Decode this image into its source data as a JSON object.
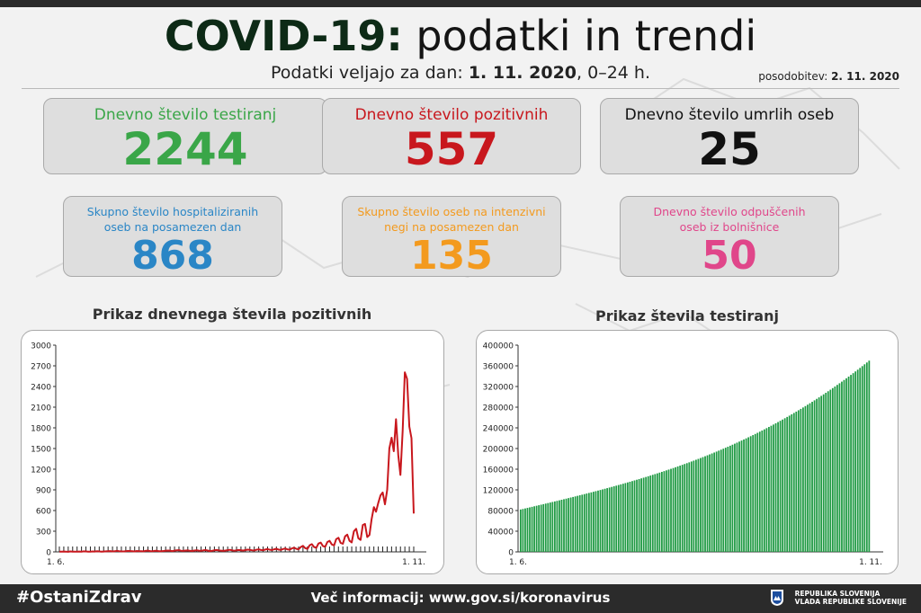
{
  "header": {
    "title_bold": "COVID-19:",
    "title_rest": "podatki in trendi",
    "date_prefix": "Podatki veljajo za dan:",
    "date_value": "1. 11. 2020",
    "date_suffix": ", 0–24 h.",
    "updated_label": "posodobitev:",
    "updated_value": "2. 11. 2020"
  },
  "stats_top": [
    {
      "label": "Dnevno število testiranj",
      "value": "2244",
      "color": "#3aa648"
    },
    {
      "label": "Dnevno število pozitivnih",
      "value": "557",
      "color": "#c8171d"
    },
    {
      "label": "Dnevno število umrlih oseb",
      "value": "25",
      "color": "#111111"
    }
  ],
  "stats_bottom": [
    {
      "label_line1": "Skupno število hospitaliziranih",
      "label_line2": "oseb na posamezen dan",
      "value": "868",
      "color": "#2a86c6"
    },
    {
      "label_line1": "Skupno število oseb na intenzivni",
      "label_line2": "negi na posamezen dan",
      "value": "135",
      "color": "#f39a1e"
    },
    {
      "label_line1": "Dnevno število odpuščenih",
      "label_line2": "oseb iz bolnišnice",
      "value": "50",
      "color": "#e0468a"
    }
  ],
  "charts": {
    "positive": {
      "title": "Prikaz dnevnega števila pozitivnih"
    },
    "tests": {
      "title": "Prikaz števila testiranj"
    }
  },
  "chart_data": [
    {
      "type": "line",
      "title": "Prikaz dnevnega števila pozitivnih",
      "xlabel": "",
      "ylabel": "",
      "x_tick_labels": [
        "1. 6.",
        "1. 11."
      ],
      "ylim": [
        0,
        3000
      ],
      "yticks": [
        0,
        300,
        600,
        900,
        1200,
        1500,
        1800,
        2100,
        2400,
        2700,
        3000
      ],
      "line_color": "#c8171d",
      "series": [
        {
          "values": [
            3,
            2,
            5,
            4,
            1,
            6,
            3,
            2,
            4,
            5,
            3,
            8,
            6,
            4,
            2,
            7,
            5,
            9,
            6,
            3,
            5,
            8,
            10,
            12,
            7,
            9,
            15,
            11,
            8,
            6,
            10,
            14,
            12,
            9,
            7,
            13,
            11,
            10,
            8,
            15,
            18,
            12,
            9,
            14,
            16,
            11,
            10,
            13,
            17,
            20,
            15,
            12,
            18,
            22,
            25,
            17,
            14,
            19,
            21,
            16,
            13,
            20,
            24,
            18,
            15,
            22,
            26,
            19,
            12,
            16,
            23,
            27,
            21,
            18,
            14,
            20,
            25,
            30,
            22,
            17,
            24,
            28,
            23,
            19,
            26,
            33,
            29,
            24,
            21,
            31,
            36,
            28,
            25,
            34,
            40,
            31,
            27,
            38,
            45,
            33,
            29,
            42,
            48,
            37,
            32,
            51,
            60,
            44,
            38,
            71,
            88,
            55,
            43,
            96,
            112,
            70,
            58,
            121,
            135,
            86,
            73,
            143,
            161,
            108,
            92,
            185,
            205,
            131,
            118,
            226,
            251,
            160,
            137,
            300,
            335,
            198,
            174,
            390,
            405,
            215,
            246,
            478,
            650,
            583,
            712,
            820,
            862,
            690,
            901,
            1503,
            1656,
            1461,
            1925,
            1405,
            1117,
            1757,
            2605,
            2510,
            1820,
            1650,
            557
          ]
        }
      ]
    },
    {
      "type": "bar",
      "title": "Prikaz števila testiranj",
      "xlabel": "",
      "ylabel": "",
      "x_tick_labels": [
        "1. 6.",
        "1. 11."
      ],
      "ylim": [
        0,
        400000
      ],
      "yticks": [
        0,
        40000,
        80000,
        120000,
        160000,
        200000,
        240000,
        280000,
        320000,
        360000,
        400000
      ],
      "bar_color": "#1f9a43",
      "series": [
        {
          "start_value": 82000,
          "end_value": 370000,
          "num_days": 154
        }
      ]
    }
  ]
}
